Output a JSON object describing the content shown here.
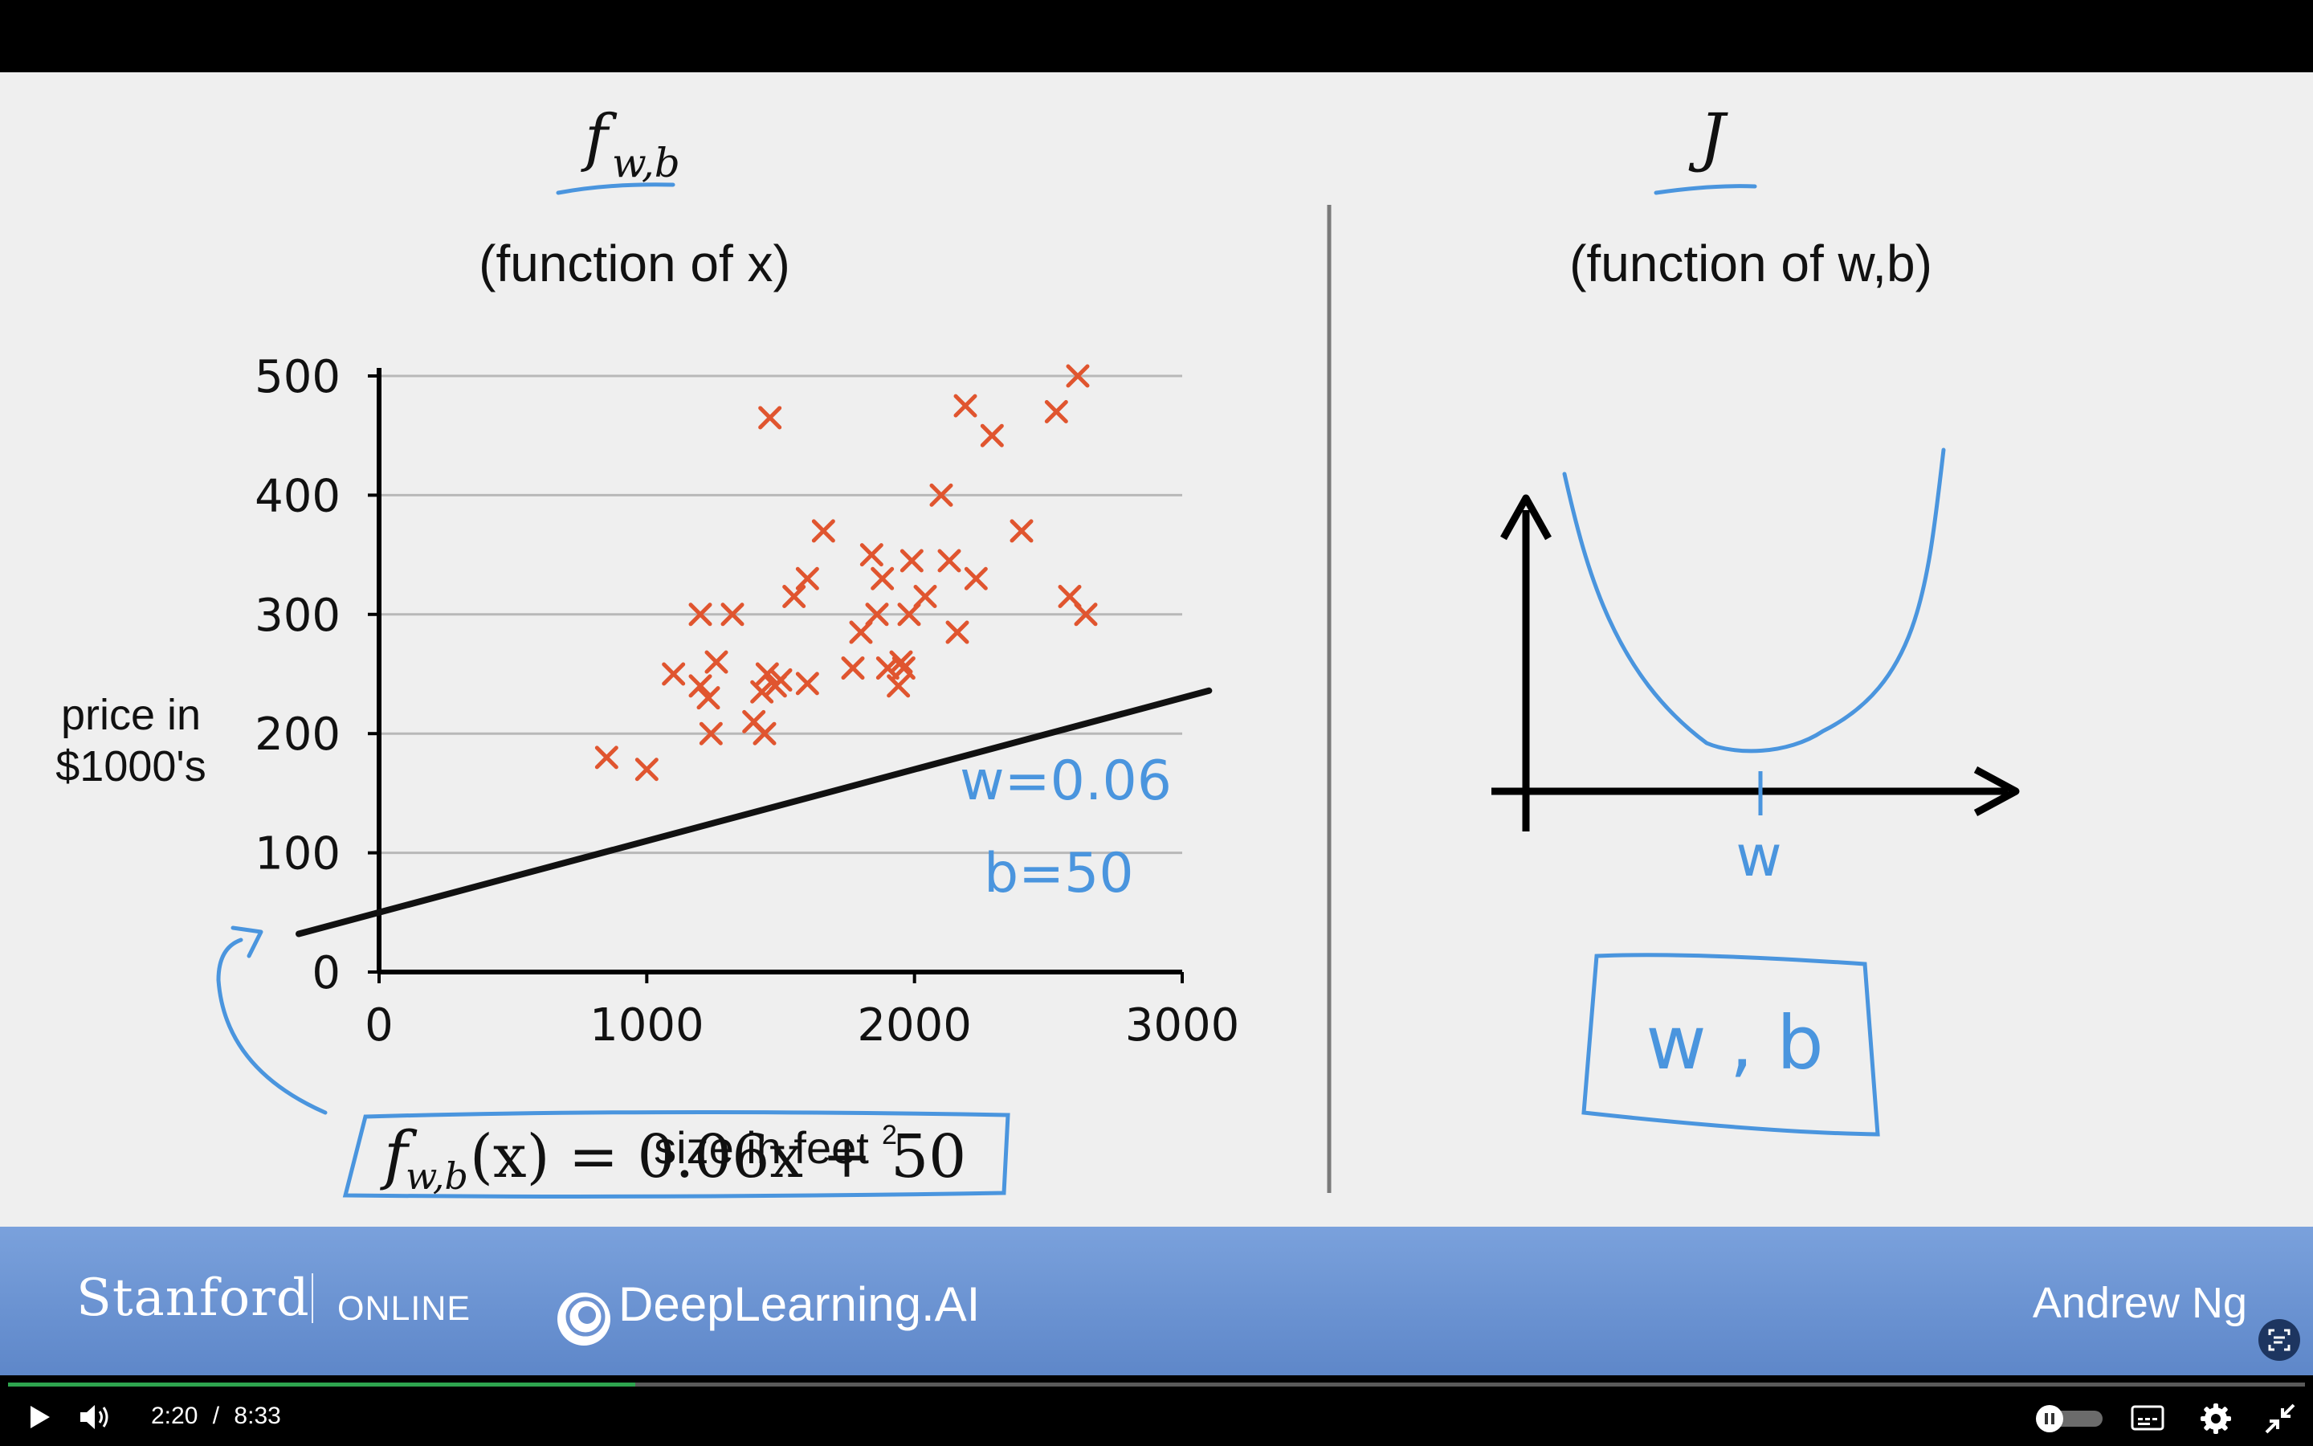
{
  "slide": {
    "left_heading": "f",
    "left_heading_sub": "w,b",
    "left_subtitle": "(function of x)",
    "right_heading": "J",
    "right_subtitle": "(function of w,b)",
    "ink_color": "#4a95de",
    "point_color": "#e0552f"
  },
  "chart_data": [
    {
      "type": "scatter",
      "title": "",
      "xlabel": "size in feet",
      "xlabel_sup": "2",
      "ylabel": "price in $1000's",
      "xlim": [
        0,
        3000
      ],
      "ylim": [
        0,
        500
      ],
      "x_ticks": [
        "0",
        "1000",
        "2000",
        "3000"
      ],
      "y_ticks": [
        "0",
        "100",
        "200",
        "300",
        "400",
        "500"
      ],
      "grid": true,
      "marker": "x",
      "points": [
        [
          850,
          180
        ],
        [
          1000,
          170
        ],
        [
          1100,
          250
        ],
        [
          1200,
          300
        ],
        [
          1200,
          240
        ],
        [
          1230,
          230
        ],
        [
          1240,
          200
        ],
        [
          1260,
          260
        ],
        [
          1320,
          300
        ],
        [
          1400,
          210
        ],
        [
          1430,
          235
        ],
        [
          1440,
          200
        ],
        [
          1450,
          250
        ],
        [
          1460,
          465
        ],
        [
          1480,
          240
        ],
        [
          1500,
          245
        ],
        [
          1550,
          315
        ],
        [
          1600,
          330
        ],
        [
          1600,
          242
        ],
        [
          1660,
          370
        ],
        [
          1770,
          255
        ],
        [
          1800,
          285
        ],
        [
          1840,
          350
        ],
        [
          1860,
          300
        ],
        [
          1880,
          330
        ],
        [
          1900,
          255
        ],
        [
          1940,
          240
        ],
        [
          1950,
          260
        ],
        [
          1960,
          255
        ],
        [
          1980,
          300
        ],
        [
          1990,
          345
        ],
        [
          2040,
          315
        ],
        [
          2100,
          400
        ],
        [
          2130,
          345
        ],
        [
          2160,
          285
        ],
        [
          2190,
          475
        ],
        [
          2230,
          330
        ],
        [
          2290,
          450
        ],
        [
          2400,
          370
        ],
        [
          2530,
          470
        ],
        [
          2580,
          315
        ],
        [
          2610,
          500
        ],
        [
          2640,
          300
        ]
      ],
      "model_line": {
        "w": 0.06,
        "b": 50,
        "x_range": [
          -300,
          3100
        ]
      },
      "annotations": {
        "w_label": "w=0.06",
        "b_label": "b=50",
        "equation_f": "f",
        "equation_sub": "w,b",
        "equation_rest": "(x) = 0.06x + 50"
      }
    },
    {
      "type": "line",
      "title": "",
      "description_axis_label": "w",
      "curve_shape": "convex parabola",
      "minimum_at": "w",
      "boxed_label": "w , b"
    }
  ],
  "banner": {
    "stanford": "Stanford",
    "online": "ONLINE",
    "deeplearning": "DeepLearning.AI",
    "presenter": "Andrew Ng"
  },
  "player": {
    "current_time": "2:20",
    "separator": "/",
    "duration": "8:33",
    "progress_fraction": 0.273,
    "icons": [
      "play-icon",
      "volume-icon",
      "autoplay-toggle-icon",
      "captions-icon",
      "settings-icon",
      "exit-fullscreen-icon"
    ]
  }
}
